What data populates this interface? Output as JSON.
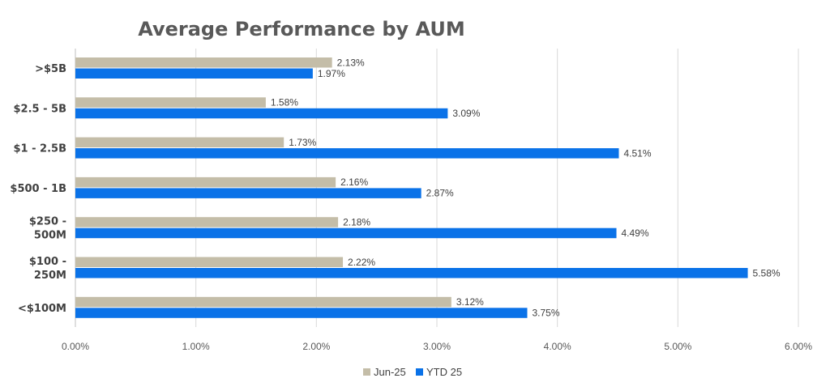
{
  "chart_data": {
    "type": "bar",
    "orientation": "horizontal",
    "title": "Average Performance by AUM",
    "xlabel": "",
    "ylabel": "",
    "categories": [
      ">$5B",
      "$2.5 - 5B",
      "$1 - 2.5B",
      "$500 - 1B",
      "$250 - 500M",
      "$100 - 250M",
      "<$100M"
    ],
    "category_lines": [
      [
        ">$5B"
      ],
      [
        "$2.5 - 5B"
      ],
      [
        "$1 - 2.5B"
      ],
      [
        "$500 - 1B"
      ],
      [
        "$250 -",
        "500M"
      ],
      [
        "$100 -",
        "250M"
      ],
      [
        "<$100M"
      ]
    ],
    "series": [
      {
        "name": "Jun-25",
        "color": "#c4bda8",
        "values": [
          2.13,
          1.58,
          1.73,
          2.16,
          2.18,
          2.22,
          3.12
        ],
        "labels": [
          "2.13%",
          "1.58%",
          "1.73%",
          "2.16%",
          "2.18%",
          "2.22%",
          "3.12%"
        ]
      },
      {
        "name": "YTD 25",
        "color": "#0a72e8",
        "values": [
          1.97,
          3.09,
          4.51,
          2.87,
          4.49,
          5.58,
          3.75
        ],
        "labels": [
          "1.97%",
          "3.09%",
          "4.51%",
          "2.87%",
          "4.49%",
          "5.58%",
          "3.75%"
        ]
      }
    ],
    "xlim": [
      0,
      6
    ],
    "xticks": [
      0,
      1,
      2,
      3,
      4,
      5,
      6
    ],
    "xtick_labels": [
      "0.00%",
      "1.00%",
      "2.00%",
      "3.00%",
      "4.00%",
      "5.00%",
      "6.00%"
    ],
    "grid": "vertical",
    "legend_position": "bottom"
  }
}
